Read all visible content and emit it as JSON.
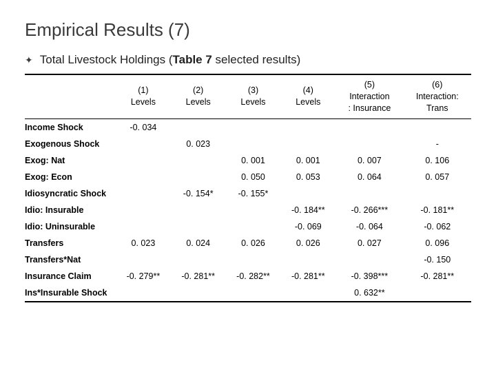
{
  "title": "Empirical Results (7)",
  "subtitle_prefix": "Total Livestock Holdings (",
  "subtitle_bold": "Table 7",
  "subtitle_suffix": " selected results)",
  "bullet_glyph": "✦",
  "columns": [
    {
      "num": "(1)",
      "label": "Levels"
    },
    {
      "num": "(2)",
      "label": "Levels"
    },
    {
      "num": "(3)",
      "label": "Levels"
    },
    {
      "num": "(4)",
      "label": "Levels"
    },
    {
      "num": "(5)",
      "label": "Interaction\n: Insurance"
    },
    {
      "num": "(6)",
      "label": "Interaction:\nTrans"
    }
  ],
  "rows": [
    {
      "label": "Income Shock",
      "c": [
        "-0. 034",
        "",
        "",
        "",
        "",
        ""
      ]
    },
    {
      "label": "Exogenous Shock",
      "c": [
        "",
        "0. 023",
        "",
        "",
        "",
        "-"
      ]
    },
    {
      "label": "Exog: Nat",
      "c": [
        "",
        "",
        "0. 001",
        "0. 001",
        "0. 007",
        "0. 106"
      ]
    },
    {
      "label": "Exog: Econ",
      "c": [
        "",
        "",
        "0. 050",
        "0. 053",
        "0. 064",
        "0. 057"
      ]
    },
    {
      "label": "Idiosyncratic Shock",
      "c": [
        "",
        "-0. 154*",
        "-0. 155*",
        "",
        "",
        ""
      ]
    },
    {
      "label": "Idio: Insurable",
      "c": [
        "",
        "",
        "",
        "-0. 184**",
        "-0. 266***",
        "-0. 181**"
      ]
    },
    {
      "label": "Idio: Uninsurable",
      "c": [
        "",
        "",
        "",
        "-0. 069",
        "-0. 064",
        "-0. 062"
      ]
    },
    {
      "label": "Transfers",
      "c": [
        "0. 023",
        "0. 024",
        "0. 026",
        "0. 026",
        "0. 027",
        "0. 096"
      ]
    },
    {
      "label": "Transfers*Nat",
      "c": [
        "",
        "",
        "",
        "",
        "",
        "-0. 150"
      ]
    },
    {
      "label": "Insurance Claim",
      "c": [
        "-0. 279**",
        "-0. 281**",
        "-0. 282**",
        "-0. 281**",
        "-0. 398***",
        "-0. 281**"
      ]
    },
    {
      "label": "Ins*Insurable Shock",
      "c": [
        "",
        "",
        "",
        "",
        "0. 632**",
        ""
      ]
    }
  ],
  "style": {
    "border_color": "#000000",
    "text_color": "#000000",
    "background": "#ffffff"
  }
}
